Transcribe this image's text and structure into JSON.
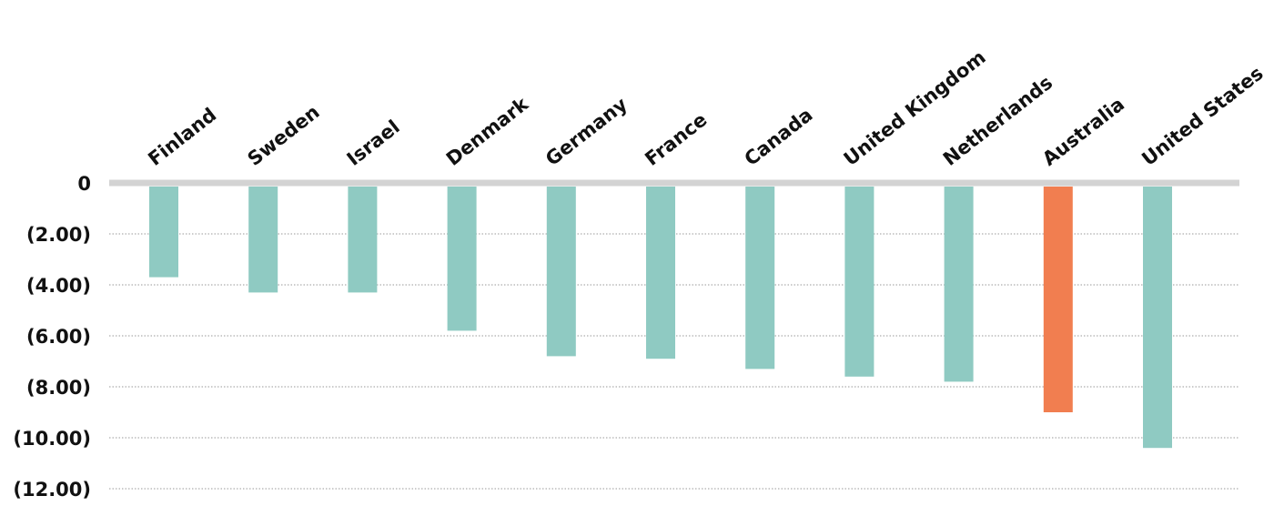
{
  "chart_data": {
    "type": "bar",
    "categories": [
      "Finland",
      "Sweden",
      "Israel",
      "Denmark",
      "Germany",
      "France",
      "Canada",
      "United Kingdom",
      "Netherlands",
      "Australia",
      "United States"
    ],
    "values": [
      -3.7,
      -4.3,
      -4.3,
      -5.8,
      -6.8,
      -6.9,
      -7.3,
      -7.6,
      -7.8,
      -9.0,
      -10.4
    ],
    "colors": [
      "#8fcac2",
      "#8fcac2",
      "#8fcac2",
      "#8fcac2",
      "#8fcac2",
      "#8fcac2",
      "#8fcac2",
      "#8fcac2",
      "#8fcac2",
      "#f17e50",
      "#8fcac2"
    ],
    "y_ticks": [
      0,
      -2,
      -4,
      -6,
      -8,
      -10,
      -12
    ],
    "y_tick_labels": [
      "0",
      "(2.00)",
      "(4.00)",
      "(6.00)",
      "(8.00)",
      "(10.00)",
      "(12.00)"
    ],
    "ylim": [
      -12,
      0
    ],
    "grid": "dotted horizontal",
    "category_label_position": "top, rotated",
    "legend": "none",
    "title": "",
    "xlabel": "",
    "ylabel": ""
  }
}
